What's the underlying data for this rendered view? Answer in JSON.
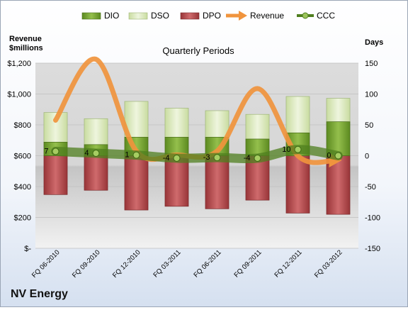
{
  "chart_data": {
    "type": "bar",
    "title": "Quarterly Periods",
    "company": "NV Energy",
    "left_axis_label": [
      "Revenue",
      "$millions"
    ],
    "right_axis_label": "Days",
    "left_axis": {
      "ylim": [
        0,
        1200
      ],
      "ticks": [
        "$-",
        "$200",
        "$400",
        "$600",
        "$800",
        "$1,000",
        "$1,200"
      ]
    },
    "right_axis": {
      "ylim": [
        -150,
        150
      ],
      "ticks": [
        "-150",
        "-100",
        "-50",
        "0",
        "50",
        "100",
        "150"
      ]
    },
    "categories": [
      "FQ 06-2010",
      "FQ 09-2010",
      "FQ 12-2010",
      "FQ 03-2011",
      "FQ 06-2011",
      "FQ 09-2011",
      "FQ 12-2011",
      "FQ 03-2012"
    ],
    "legend": [
      "DIO",
      "DSO",
      "DPO",
      "Revenue",
      "CCC"
    ],
    "series": [
      {
        "name": "DIO",
        "axis": "days",
        "color": "#6e9a2a",
        "values": [
          22,
          18,
          30,
          30,
          30,
          27,
          37,
          55
        ]
      },
      {
        "name": "DSO",
        "axis": "days",
        "color": "#d5e6b3",
        "values": [
          48,
          42,
          58,
          47,
          43,
          40,
          59,
          38
        ]
      },
      {
        "name": "DPO",
        "axis": "days",
        "color": "#b0464a",
        "values": [
          -63,
          -56,
          -88,
          -82,
          -86,
          -72,
          -93,
          -95
        ]
      },
      {
        "name": "Revenue",
        "axis": "revenue",
        "color": "#f0943d",
        "values": [
          830,
          1225,
          630,
          605,
          630,
          1035,
          600,
          575
        ]
      },
      {
        "name": "CCC",
        "axis": "days",
        "color": "#4f7f1f",
        "values": [
          7,
          4,
          1,
          -4,
          -3,
          -4,
          10,
          0
        ]
      }
    ],
    "ccc_labels": [
      "7",
      "4",
      "1",
      "-4",
      "-3",
      "-4",
      "10",
      "0"
    ],
    "grid": true,
    "legend_position": "top"
  }
}
